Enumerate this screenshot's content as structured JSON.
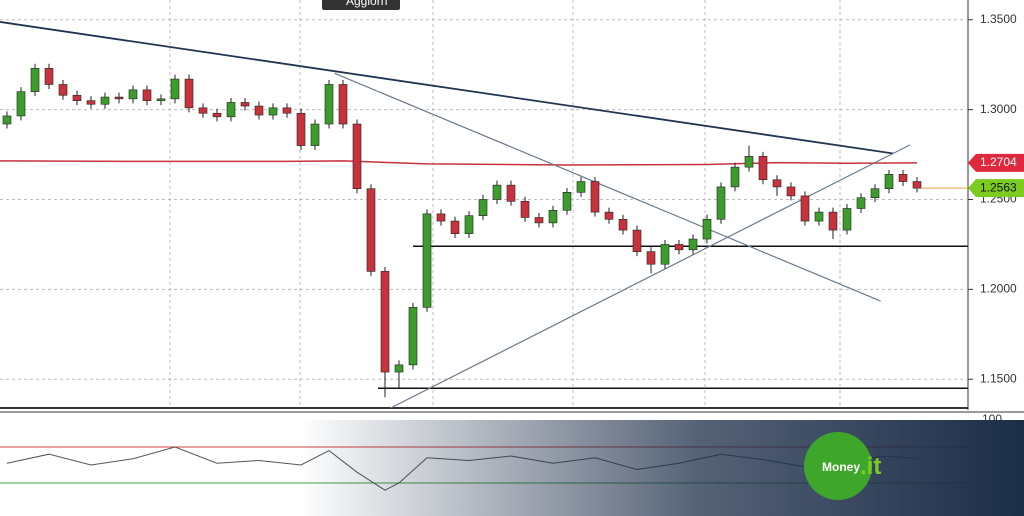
{
  "chart_data": {
    "type": "candlestick",
    "button": "Aggiorn",
    "logo": {
      "main": "Money",
      "suffix": ".it"
    },
    "up_color": "#3c9c2c",
    "down_color": "#c8323c",
    "ylim": [
      1.134,
      1.361
    ],
    "yticks": [
      {
        "value": 1.35,
        "label": "1.3500"
      },
      {
        "value": 1.3,
        "label": "1.3000"
      },
      {
        "value": 1.25,
        "label": "1.2500"
      },
      {
        "value": 1.2,
        "label": "1.2000"
      },
      {
        "value": 1.15,
        "label": "1.1500"
      }
    ],
    "grid": true,
    "open": [
      1.292,
      1.2965,
      1.31,
      1.323,
      1.314,
      1.308,
      1.305,
      1.303,
      1.307,
      1.306,
      1.311,
      1.305,
      1.306,
      1.317,
      1.301,
      1.298,
      1.296,
      1.304,
      1.302,
      1.297,
      1.301,
      1.298,
      1.28,
      1.292,
      1.314,
      1.292,
      1.256,
      1.21,
      1.154,
      1.158,
      1.19,
      1.242,
      1.238,
      1.231,
      1.241,
      1.25,
      1.258,
      1.249,
      1.24,
      1.237,
      1.244,
      1.254,
      1.26,
      1.243,
      1.239,
      1.233,
      1.221,
      1.214,
      1.225,
      1.222,
      1.228,
      1.239,
      1.257,
      1.268,
      1.274,
      1.261,
      1.257,
      1.252,
      1.238,
      1.243,
      1.233,
      1.245,
      1.251,
      1.256,
      1.264,
      1.26
    ],
    "high": [
      1.299,
      1.3125,
      1.3255,
      1.3255,
      1.3165,
      1.3105,
      1.3075,
      1.3095,
      1.3095,
      1.3135,
      1.3135,
      1.3085,
      1.3195,
      1.3195,
      1.3035,
      1.3005,
      1.3065,
      1.3065,
      1.3045,
      1.3035,
      1.3035,
      1.3005,
      1.2945,
      1.3165,
      1.3165,
      1.2945,
      1.2585,
      1.2125,
      1.1605,
      1.1925,
      1.2445,
      1.2445,
      1.2405,
      1.2435,
      1.2525,
      1.2605,
      1.2605,
      1.2515,
      1.2425,
      1.2465,
      1.2565,
      1.2625,
      1.2625,
      1.2455,
      1.2415,
      1.2355,
      1.2235,
      1.2275,
      1.2275,
      1.2305,
      1.2415,
      1.2595,
      1.2705,
      1.28,
      1.2765,
      1.2635,
      1.2595,
      1.2545,
      1.2455,
      1.2455,
      1.2475,
      1.2535,
      1.2585,
      1.2665,
      1.2665,
      1.2625
    ],
    "low": [
      1.2895,
      1.294,
      1.3075,
      1.3115,
      1.3055,
      1.3025,
      1.3005,
      1.3005,
      1.3035,
      1.3035,
      1.3025,
      1.3025,
      1.3035,
      1.2985,
      1.2955,
      1.2935,
      1.2935,
      1.2995,
      1.2945,
      1.2945,
      1.2955,
      1.2775,
      1.2775,
      1.2895,
      1.2895,
      1.2535,
      1.2075,
      1.14,
      1.145,
      1.1555,
      1.1875,
      1.2355,
      1.2285,
      1.2285,
      1.2385,
      1.2475,
      1.2465,
      1.2375,
      1.2345,
      1.2345,
      1.2415,
      1.2515,
      1.2405,
      1.2365,
      1.2305,
      1.2185,
      1.209,
      1.2115,
      1.2195,
      1.2195,
      1.2255,
      1.2365,
      1.2545,
      1.2655,
      1.2585,
      1.252,
      1.2495,
      1.2355,
      1.2355,
      1.228,
      1.2305,
      1.2425,
      1.2485,
      1.2535,
      1.2575,
      1.254
    ],
    "close": [
      1.2965,
      1.31,
      1.323,
      1.314,
      1.308,
      1.305,
      1.303,
      1.307,
      1.306,
      1.311,
      1.305,
      1.306,
      1.317,
      1.301,
      1.298,
      1.296,
      1.304,
      1.302,
      1.297,
      1.301,
      1.298,
      1.28,
      1.292,
      1.314,
      1.292,
      1.256,
      1.21,
      1.154,
      1.158,
      1.19,
      1.242,
      1.238,
      1.231,
      1.241,
      1.25,
      1.258,
      1.249,
      1.24,
      1.237,
      1.244,
      1.254,
      1.26,
      1.243,
      1.239,
      1.233,
      1.221,
      1.214,
      1.225,
      1.222,
      1.228,
      1.239,
      1.257,
      1.268,
      1.274,
      1.261,
      1.257,
      1.252,
      1.238,
      1.243,
      1.233,
      1.245,
      1.251,
      1.256,
      1.264,
      1.26,
      1.2563
    ],
    "moving_average": {
      "color": "#c8323c",
      "x": [
        -0.5,
        10,
        20,
        24,
        30,
        40,
        50,
        55,
        60,
        65
      ],
      "values": [
        1.2715,
        1.2712,
        1.2712,
        1.2715,
        1.2698,
        1.2692,
        1.2695,
        1.2705,
        1.2702,
        1.2704
      ]
    },
    "trendlines": [
      {
        "color": "#1f3550",
        "x": [
          -0.5,
          63.3
        ],
        "values": [
          1.3488,
          1.2756
        ]
      },
      {
        "color": "#6a7a90",
        "x": [
          23.4,
          62.4
        ],
        "values": [
          1.3202,
          1.1935
        ]
      },
      {
        "color": "#6a7a90",
        "x": [
          27.4,
          64.5
        ],
        "values": [
          1.134,
          1.2804
        ]
      }
    ],
    "levels": [
      {
        "value": 1.224,
        "from": 29
      },
      {
        "value": 1.145,
        "from": 26.5
      }
    ],
    "price_tags": [
      {
        "value": 1.2704,
        "label": "1.2704",
        "color": "#e0283c"
      },
      {
        "value": 1.2563,
        "label": "1.2563",
        "color": "#7ccc20"
      }
    ],
    "indicator": {
      "ylim": [
        0,
        100
      ],
      "axis_label": "100",
      "levels": [
        70,
        30
      ],
      "x": [
        0,
        3,
        6,
        9,
        12,
        15,
        18,
        21,
        23,
        25,
        27,
        28,
        30,
        33,
        36,
        39,
        42,
        45,
        48,
        51,
        54,
        57,
        60,
        63,
        65
      ],
      "values": [
        52,
        62,
        50,
        57,
        70,
        52,
        55,
        50,
        66,
        42,
        22,
        30,
        58,
        55,
        60,
        52,
        58,
        45,
        52,
        62,
        56,
        48,
        55,
        60,
        57
      ]
    }
  }
}
